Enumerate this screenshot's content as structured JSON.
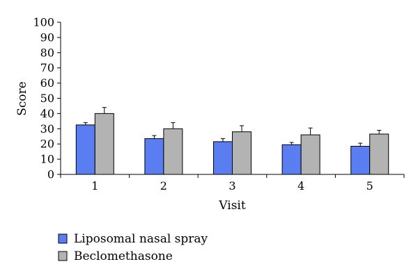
{
  "chart_data": {
    "type": "bar",
    "xlabel": "Visit",
    "ylabel": "Score",
    "categories": [
      "1",
      "2",
      "3",
      "4",
      "5"
    ],
    "ylim": [
      0,
      100
    ],
    "yticks": [
      0,
      10,
      20,
      30,
      40,
      50,
      60,
      70,
      80,
      90,
      100
    ],
    "grid": false,
    "legend": "bottom-left",
    "series": [
      {
        "name": "Liposomal nasal spray",
        "color": "#5b7df2",
        "values": [
          32.5,
          23.5,
          21.5,
          19.5,
          18.5
        ],
        "errors": [
          1.5,
          2.0,
          2.0,
          1.5,
          2.0
        ]
      },
      {
        "name": "Beclomethasone",
        "color": "#b3b3b3",
        "values": [
          40,
          30,
          28,
          26,
          26.5
        ],
        "errors": [
          4.0,
          4.0,
          4.0,
          4.5,
          2.5
        ]
      }
    ]
  }
}
